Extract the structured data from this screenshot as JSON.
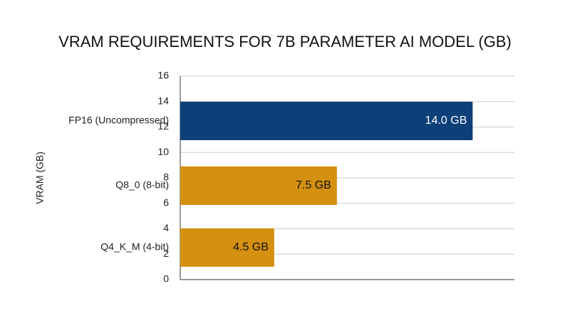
{
  "chart_data": {
    "type": "bar",
    "orientation": "horizontal",
    "title": "VRAM REQUIREMENTS FOR 7B PARAMETER AI MODEL (GB)",
    "y_label": "VRAM (GB)",
    "categories": [
      "FP16 (Uncompressed)",
      "Q8_0 (8-bit)",
      "Q4_K_M (4-bit)"
    ],
    "values": [
      14.0,
      7.5,
      4.5
    ],
    "value_labels": [
      "14.0 GB",
      "7.5 GB",
      "4.5 GB"
    ],
    "colors": [
      "#0d3f78",
      "#d4900f",
      "#d4900f"
    ],
    "ylim": [
      0,
      16
    ],
    "yticks": [
      0,
      2,
      4,
      6,
      8,
      10,
      12,
      14,
      16
    ],
    "grid": true
  }
}
